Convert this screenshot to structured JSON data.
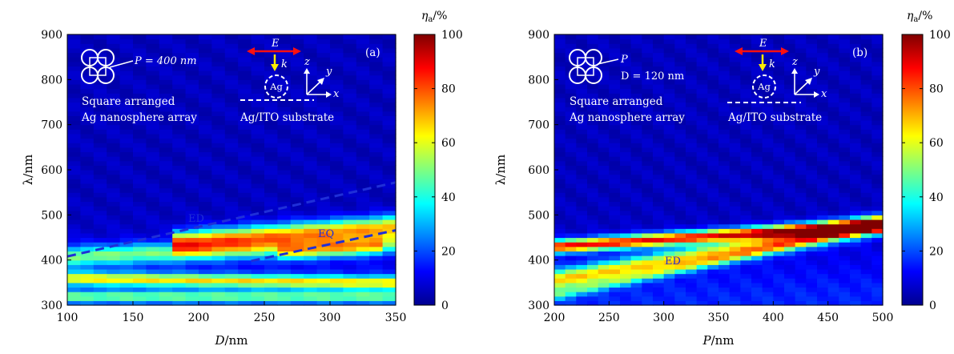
{
  "colorbar_ticks": [
    "0",
    "20",
    "40",
    "60",
    "80",
    "100"
  ],
  "chart_data": [
    {
      "type": "heatmap",
      "panel_label": "(a)",
      "xlabel_var": "D",
      "xlabel_unit": "/nm",
      "ylabel": "λ/nm",
      "colorbar_label_sym": "η",
      "colorbar_label_sub": "a",
      "colorbar_label_unit": "/%",
      "xlim": [
        100,
        350
      ],
      "ylim": [
        300,
        900
      ],
      "zlim": [
        0,
        100
      ],
      "x_ticks": [
        "100",
        "150",
        "200",
        "250",
        "300",
        "350"
      ],
      "y_ticks": [
        "300",
        "400",
        "500",
        "600",
        "700",
        "800",
        "900"
      ],
      "annotations": {
        "param1": "P = 400 nm",
        "array_line1": "Square arranged",
        "array_line2": "Ag nanosphere array",
        "field_E": "E",
        "field_k": "k",
        "sphere": "Ag",
        "axis_z": "z",
        "axis_y": "y",
        "axis_x": "x",
        "substrate": "Ag/ITO substrate",
        "mode_ED": "ED",
        "mode_EQ": "EQ"
      },
      "mode_lines": [
        {
          "name": "ED",
          "x": [
            100,
            350
          ],
          "y": [
            408,
            572
          ]
        },
        {
          "name": "EQ",
          "x": [
            240,
            350
          ],
          "y": [
            398,
            466
          ]
        }
      ],
      "features": [
        {
          "x0": 100,
          "y0": 360,
          "x1": 350,
          "y1": 350,
          "sigma": 14,
          "amp": 52
        },
        {
          "x0": 100,
          "y0": 408,
          "x1": 350,
          "y1": 440,
          "sigma": 22,
          "amp": 40
        },
        {
          "x0": 180,
          "y0": 440,
          "x1": 350,
          "y1": 475,
          "sigma": 24,
          "amp": 60
        },
        {
          "x0": 260,
          "y0": 415,
          "x1": 340,
          "y1": 430,
          "sigma": 16,
          "amp": 25
        },
        {
          "x0": 100,
          "y0": 320,
          "x1": 350,
          "y1": 320,
          "sigma": 12,
          "amp": 35
        }
      ]
    },
    {
      "type": "heatmap",
      "panel_label": "(b)",
      "xlabel_var": "P",
      "xlabel_unit": "/nm",
      "ylabel": "λ/nm",
      "colorbar_label_sym": "η",
      "colorbar_label_sub": "a",
      "colorbar_label_unit": "/%",
      "xlim": [
        200,
        500
      ],
      "ylim": [
        300,
        900
      ],
      "zlim": [
        0,
        100
      ],
      "x_ticks": [
        "200",
        "250",
        "300",
        "350",
        "400",
        "450",
        "500"
      ],
      "y_ticks": [
        "300",
        "400",
        "500",
        "600",
        "700",
        "800",
        "900"
      ],
      "annotations": {
        "param1": "P",
        "param2": "D = 120 nm",
        "array_line1": "Square arranged",
        "array_line2": "Ag nanosphere array",
        "field_E": "E",
        "field_k": "k",
        "sphere": "Ag",
        "axis_z": "z",
        "axis_y": "y",
        "axis_x": "x",
        "substrate": "Ag/ITO substrate",
        "mode_ED": "ED"
      },
      "features": [
        {
          "x0": 200,
          "y0": 430,
          "x1": 500,
          "y1": 480,
          "sigma": 14,
          "amp": 80
        },
        {
          "x0": 200,
          "y0": 355,
          "x1": 500,
          "y1": 480,
          "sigma": 22,
          "amp": 55
        },
        {
          "x0": 200,
          "y0": 322,
          "x1": 500,
          "y1": 480,
          "sigma": 12,
          "amp": 25
        }
      ]
    }
  ]
}
